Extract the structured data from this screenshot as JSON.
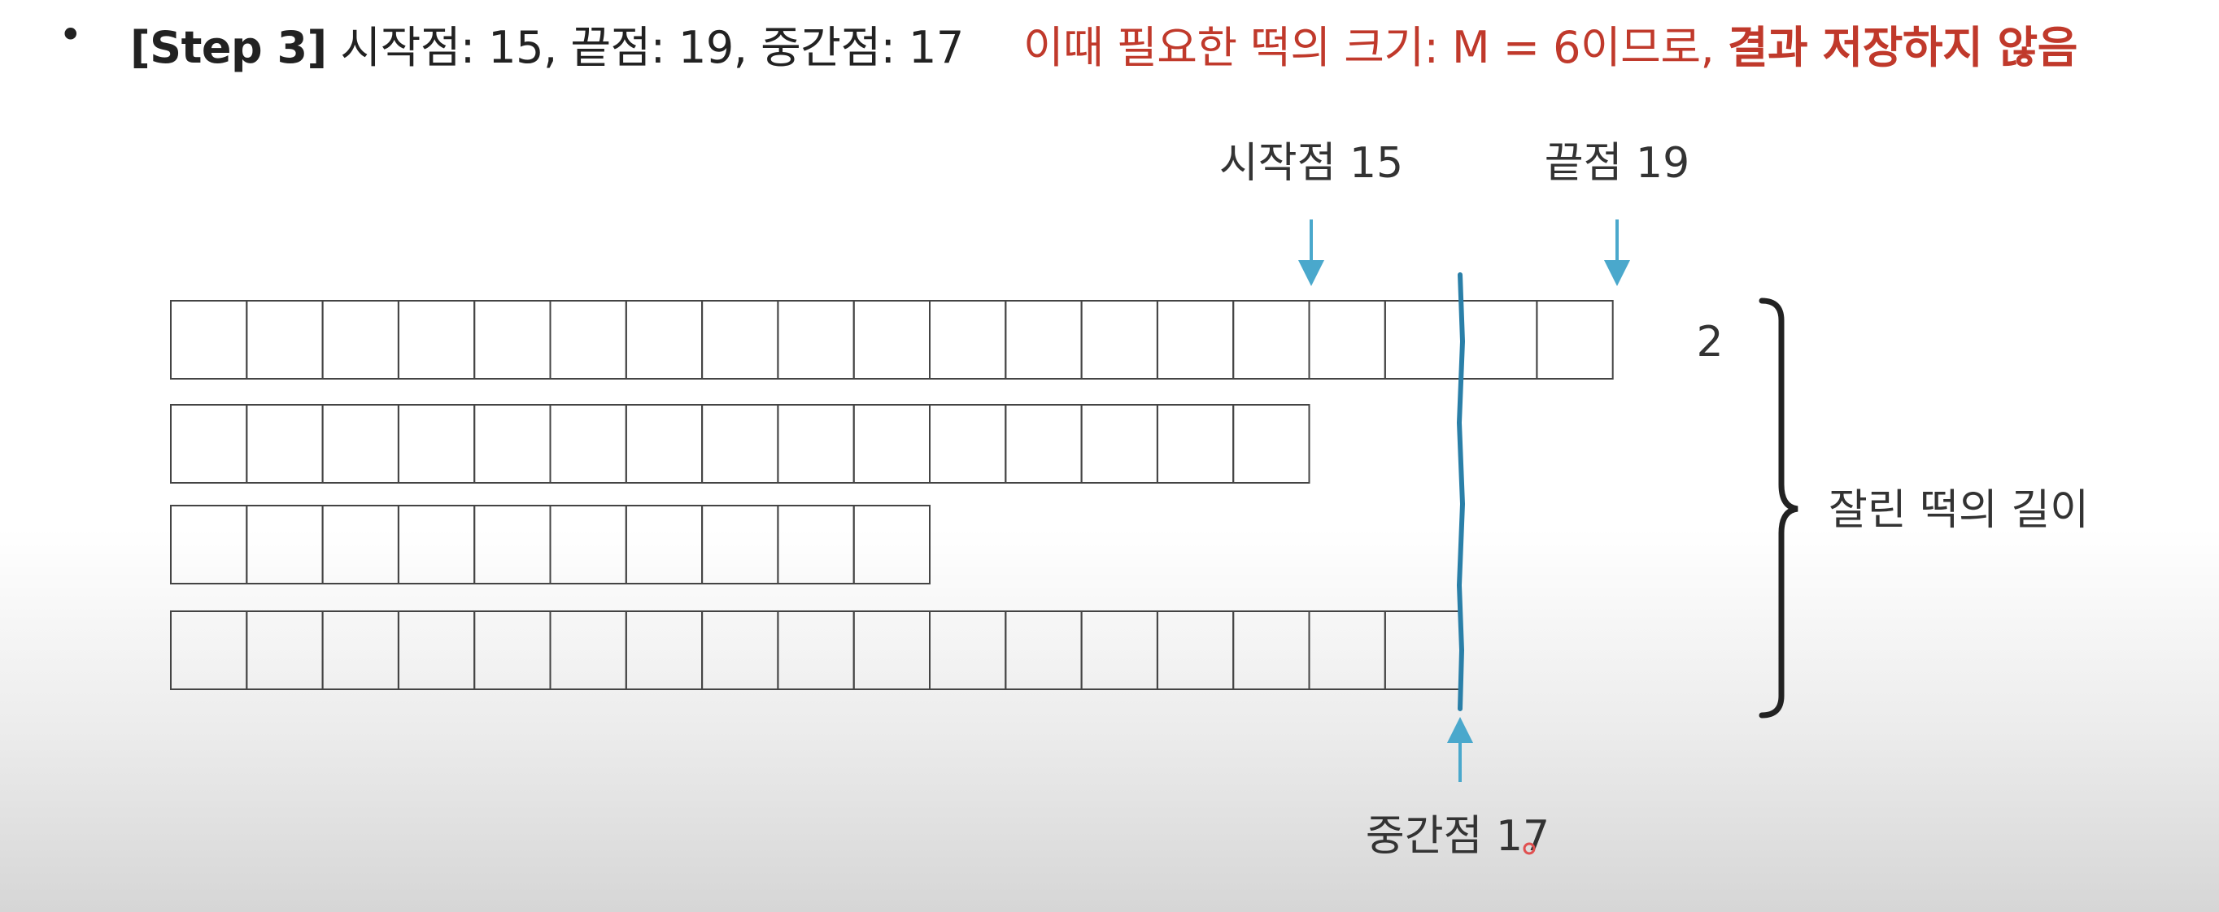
{
  "header": {
    "bullet": "•",
    "step_tag": "[Step 3]",
    "step_desc": "시작점: 15, 끝점: 19, 중간점: 17",
    "note_prefix": "이때 필요한 떡의 크기: M = 6이므로, ",
    "note_result": "결과 저장하지 않음"
  },
  "diagram": {
    "start_label": "시작점 15",
    "end_label": "끝점 19",
    "mid_label": "중간점 17",
    "leftover_value": "2",
    "brace_label": "잘린 떡의 길이",
    "rice_cake_lengths": [
      19,
      15,
      10,
      17
    ],
    "cut_height": 17,
    "colors": {
      "arrow": "#4aa8cc",
      "cut_line": "#2a7fa8",
      "box_stroke": "#444444",
      "note_text": "#c0392b"
    }
  }
}
